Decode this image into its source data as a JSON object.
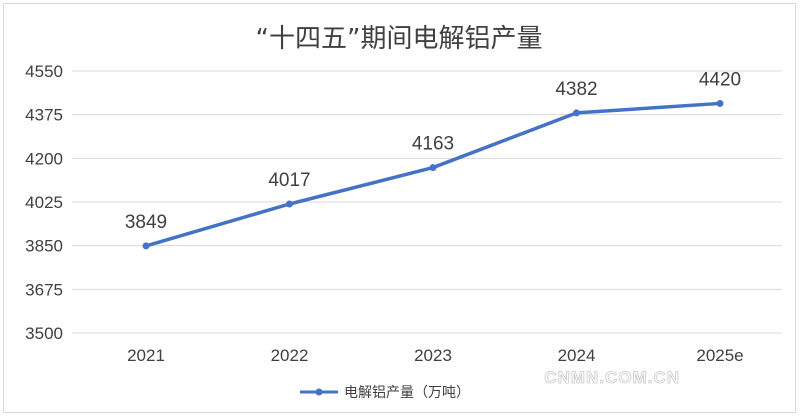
{
  "chart_data": {
    "type": "line",
    "title": "“十四五”期间电解铝产量",
    "categories": [
      "2021",
      "2022",
      "2023",
      "2024",
      "2025e"
    ],
    "series": [
      {
        "name": "电解铝产量（万吨）",
        "values": [
          3849,
          4017,
          4163,
          4382,
          4420
        ]
      }
    ],
    "data_labels": [
      "3849",
      "4017",
      "4163",
      "4382",
      "4420"
    ],
    "y_ticks": [
      "4550",
      "4375",
      "4200",
      "4025",
      "3850",
      "3675",
      "3500"
    ],
    "ylim": [
      3500,
      4550
    ],
    "grid": true,
    "legend_position": "bottom",
    "line_color": "#4472c4"
  },
  "watermark": "CNMN.COM.CN"
}
